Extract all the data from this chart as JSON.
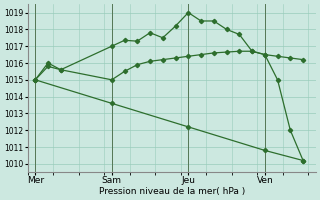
{
  "background_color": "#cce8e0",
  "grid_color": "#99ccbb",
  "line_color": "#2d6e2d",
  "xlabel": "Pression niveau de la mer( hPa )",
  "ylim": [
    1009.5,
    1019.5
  ],
  "yticks": [
    1010,
    1011,
    1012,
    1013,
    1014,
    1015,
    1016,
    1017,
    1018,
    1019
  ],
  "xtick_labels": [
    "Mer",
    "Sam",
    "Jeu",
    "Ven"
  ],
  "xtick_positions": [
    0,
    3,
    6,
    9
  ],
  "xlim": [
    -0.3,
    11.0
  ],
  "line1_x": [
    0,
    0.5,
    1,
    3,
    3.5,
    4,
    4.5,
    5,
    5.5,
    6,
    6.5,
    7,
    7.5,
    8,
    8.5,
    9,
    9.5,
    10,
    10.5
  ],
  "line1_y": [
    1015.0,
    1015.8,
    1015.6,
    1017.0,
    1017.35,
    1017.3,
    1017.8,
    1017.5,
    1018.2,
    1019.0,
    1018.5,
    1018.5,
    1018.0,
    1017.7,
    1016.7,
    1016.5,
    1015.0,
    1012.0,
    1010.2
  ],
  "line2_x": [
    0,
    0.5,
    1,
    3,
    3.5,
    4,
    4.5,
    5,
    5.5,
    6,
    6.5,
    7,
    7.5,
    8,
    8.5,
    9,
    9.5,
    10,
    10.5
  ],
  "line2_y": [
    1015.0,
    1016.0,
    1015.6,
    1015.0,
    1015.5,
    1015.9,
    1016.1,
    1016.2,
    1016.3,
    1016.4,
    1016.5,
    1016.6,
    1016.65,
    1016.7,
    1016.7,
    1016.5,
    1016.4,
    1016.3,
    1016.2
  ],
  "line3_x": [
    0,
    3,
    6,
    9,
    10.5
  ],
  "line3_y": [
    1015.0,
    1013.6,
    1012.2,
    1010.8,
    1010.2
  ],
  "figsize": [
    3.2,
    2.0
  ],
  "dpi": 100
}
